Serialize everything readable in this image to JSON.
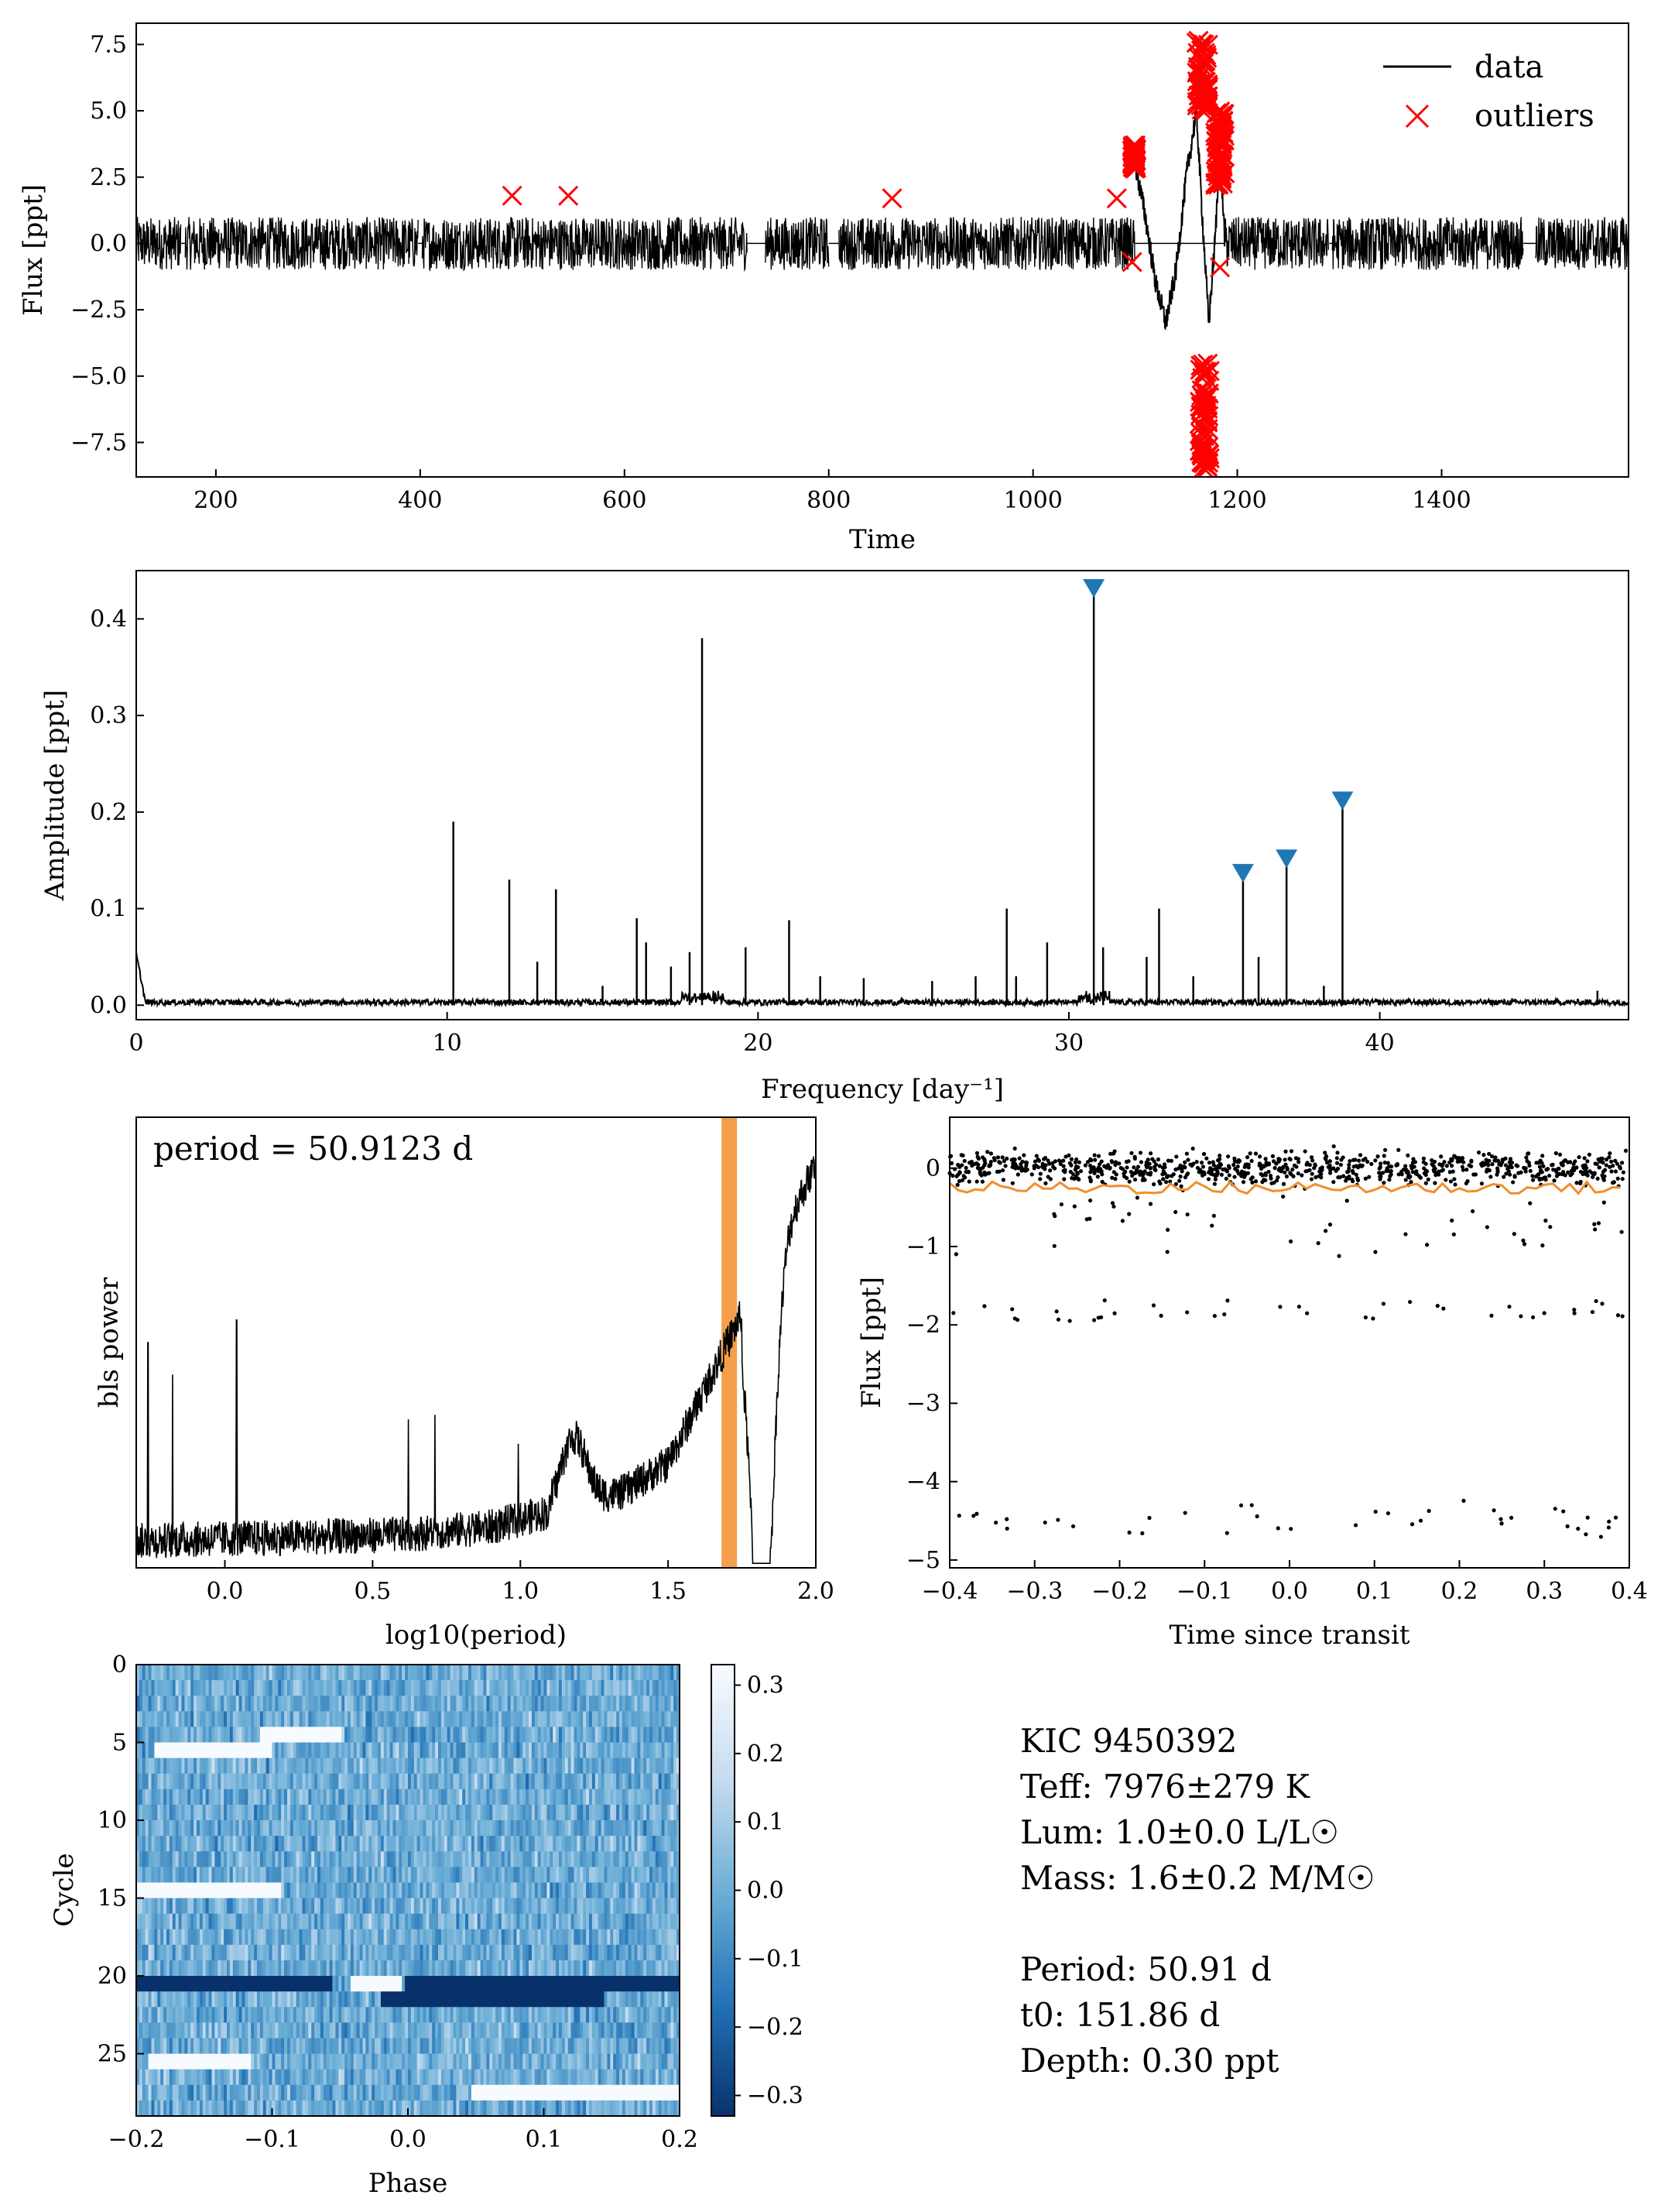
{
  "chart_data": [
    {
      "type": "line",
      "panel": "lightcurve",
      "xlabel": "Time",
      "ylabel": "Flux [ppt]",
      "xlim": [
        122,
        1583
      ],
      "ylim": [
        -8.8,
        8.3
      ],
      "xticks": [
        200,
        400,
        600,
        800,
        1000,
        1200,
        1400
      ],
      "yticks": [
        -7.5,
        -5.0,
        -2.5,
        0.0,
        2.5,
        5.0,
        7.5
      ],
      "ytick_labels": [
        "−7.5",
        "−5.0",
        "−2.5",
        "0.0",
        "2.5",
        "5.0",
        "7.5"
      ],
      "legend_position": "top-right",
      "series": [
        {
          "name": "data",
          "color": "#000000",
          "noise_band": [
            -1.0,
            1.0
          ],
          "segments": [
            [
              122,
              166
            ],
            [
              170,
              398
            ],
            [
              402,
              720
            ],
            [
              738,
              800
            ],
            [
              810,
              1100
            ],
            [
              1188,
              1290
            ],
            [
              1293,
              1480
            ],
            [
              1492,
              1583
            ]
          ],
          "event": [
            [
              1100,
              3.0
            ],
            [
              1110,
              1.0
            ],
            [
              1120,
              -1.5
            ],
            [
              1130,
              -3.0
            ],
            [
              1140,
              -1.0
            ],
            [
              1150,
              2.5
            ],
            [
              1160,
              5.0
            ],
            [
              1165,
              1.5
            ],
            [
              1172,
              -3.0
            ],
            [
              1178,
              0.0
            ],
            [
              1183,
              3.5
            ],
            [
              1188,
              0.0
            ]
          ]
        },
        {
          "name": "outliers",
          "color": "#ff0000",
          "points": [
            [
              490,
              1.8
            ],
            [
              545,
              1.8
            ],
            [
              862,
              1.7
            ],
            [
              1082,
              1.7
            ],
            [
              1097,
              3.5
            ],
            [
              1097,
              3.0
            ],
            [
              1097,
              -0.7
            ],
            [
              1183,
              -0.9
            ],
            [
              1183,
              4.8
            ]
          ],
          "clusters": [
            [
              1097,
              1101,
              2.8,
              3.7
            ],
            [
              1160,
              1172,
              5.0,
              7.7
            ],
            [
              1163,
              1173,
              -8.5,
              -4.5
            ],
            [
              1178,
              1188,
              2.2,
              5.0
            ]
          ]
        }
      ]
    },
    {
      "type": "line",
      "panel": "periodogram",
      "xlabel": "Frequency [day⁻¹]",
      "ylabel": "Amplitude [ppt]",
      "xlim": [
        0,
        48
      ],
      "ylim": [
        -0.015,
        0.45
      ],
      "xticks": [
        0,
        10,
        20,
        30,
        40
      ],
      "yticks": [
        0.0,
        0.1,
        0.2,
        0.3,
        0.4
      ],
      "peaks": [
        [
          10.2,
          0.19
        ],
        [
          12.0,
          0.13
        ],
        [
          12.9,
          0.045
        ],
        [
          13.5,
          0.12
        ],
        [
          15.0,
          0.02
        ],
        [
          16.1,
          0.09
        ],
        [
          16.4,
          0.065
        ],
        [
          17.2,
          0.04
        ],
        [
          17.8,
          0.055
        ],
        [
          18.2,
          0.38
        ],
        [
          19.6,
          0.06
        ],
        [
          21.0,
          0.088
        ],
        [
          22.0,
          0.03
        ],
        [
          23.4,
          0.028
        ],
        [
          25.6,
          0.025
        ],
        [
          27.0,
          0.03
        ],
        [
          28.0,
          0.1
        ],
        [
          28.3,
          0.03
        ],
        [
          29.3,
          0.065
        ],
        [
          30.8,
          0.43
        ],
        [
          31.1,
          0.06
        ],
        [
          32.5,
          0.05
        ],
        [
          32.9,
          0.1
        ],
        [
          34.0,
          0.03
        ],
        [
          35.6,
          0.135
        ],
        [
          36.1,
          0.05
        ],
        [
          37.0,
          0.15
        ],
        [
          38.2,
          0.02
        ],
        [
          38.8,
          0.21
        ],
        [
          47.0,
          0.015
        ]
      ],
      "markers": [
        [
          30.8,
          0.43
        ],
        [
          35.6,
          0.135
        ],
        [
          37.0,
          0.15
        ],
        [
          38.8,
          0.21
        ]
      ],
      "marker_color": "#1f77b4"
    },
    {
      "type": "line",
      "panel": "bls",
      "xlabel": "log10(period)",
      "ylabel": "bls power",
      "annotation": "period = 50.9123 d",
      "xlim": [
        -0.3,
        2.0
      ],
      "xticks": [
        0.0,
        0.5,
        1.0,
        1.5,
        2.0
      ],
      "highlight_x": 1.707,
      "highlight_color": "#f28e2b"
    },
    {
      "type": "scatter",
      "panel": "folded",
      "xlabel": "Time since transit",
      "ylabel": "Flux [ppt]",
      "xlim": [
        -0.4,
        0.4
      ],
      "ylim": [
        -5.1,
        0.65
      ],
      "xticks": [
        -0.4,
        -0.3,
        -0.2,
        -0.1,
        0.0,
        0.1,
        0.2,
        0.3,
        0.4
      ],
      "xtick_labels": [
        "−0.4",
        "−0.3",
        "−0.2",
        "−0.1",
        "0.0",
        "0.1",
        "0.2",
        "0.3",
        "0.4"
      ],
      "yticks": [
        -5,
        -4,
        -3,
        -2,
        -1,
        0
      ],
      "ytick_labels": [
        "−5",
        "−4",
        "−3",
        "−2",
        "−1",
        "0"
      ],
      "point_bands": [
        [
          0.0,
          0.25
        ],
        [
          -1.8,
          0.2
        ],
        [
          -4.5,
          0.3
        ]
      ],
      "model_level": -0.25,
      "model_color": "#f28e2b"
    },
    {
      "type": "heatmap",
      "panel": "river",
      "xlabel": "Phase",
      "ylabel": "Cycle",
      "xlim": [
        -0.2,
        0.2
      ],
      "ylim": [
        29,
        0
      ],
      "rows": 29,
      "xticks": [
        -0.2,
        -0.1,
        0.0,
        0.1,
        0.2
      ],
      "xtick_labels": [
        "−0.2",
        "−0.1",
        "0.0",
        "0.1",
        "0.2"
      ],
      "yticks": [
        0,
        5,
        10,
        15,
        20,
        25
      ],
      "clim": [
        -0.33,
        0.33
      ],
      "colorbar_ticks": [
        0.3,
        0.2,
        0.1,
        0.0,
        -0.1,
        -0.2,
        -0.3
      ],
      "colorbar_labels": [
        "0.3",
        "0.2",
        "0.1",
        "0.0",
        "−0.1",
        "−0.2",
        "−0.3"
      ],
      "colormap": "Blues"
    }
  ],
  "info": {
    "lines": [
      "KIC 9450392",
      "Teff: 7976±279 K",
      "Lum: 1.0±0.0 L/L☉",
      "Mass: 1.6±0.2 M/M☉",
      "",
      "Period: 50.91 d",
      "t0: 151.86 d",
      "Depth: 0.30 ppt"
    ]
  }
}
